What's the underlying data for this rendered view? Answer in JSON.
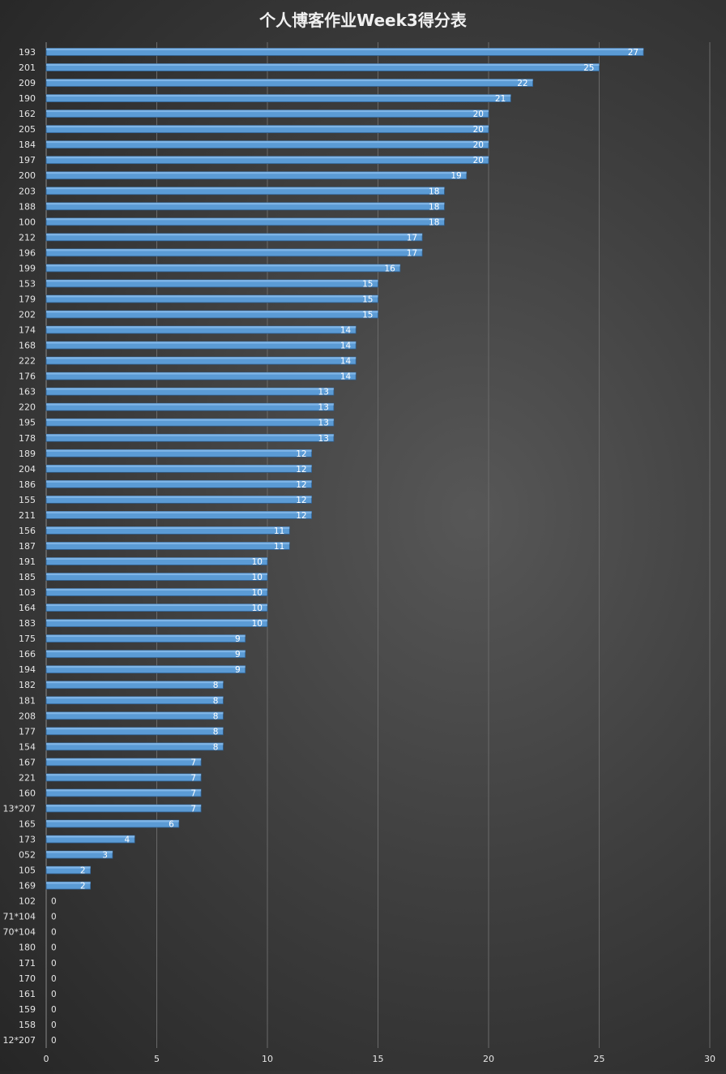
{
  "chart_data": {
    "type": "bar",
    "orientation": "horizontal",
    "title": "个人博客作业Week3得分表",
    "xlabel": "",
    "ylabel": "",
    "xlim": [
      0,
      30
    ],
    "x_ticks": [
      0,
      5,
      10,
      15,
      20,
      25,
      30
    ],
    "grid": true,
    "legend": "none",
    "colors": {
      "bar": "#5b9bd5",
      "bar_edge": "#2f5f8f",
      "text": "#e6e6e6",
      "grid": "#6a6a6a",
      "background": "#3a3a3a"
    },
    "categories": [
      "193",
      "201",
      "209",
      "190",
      "162",
      "205",
      "184",
      "197",
      "200",
      "203",
      "188",
      "100",
      "212",
      "196",
      "199",
      "153",
      "179",
      "202",
      "174",
      "168",
      "222",
      "176",
      "163",
      "220",
      "195",
      "178",
      "189",
      "204",
      "186",
      "155",
      "211",
      "156",
      "187",
      "191",
      "185",
      "103",
      "164",
      "183",
      "175",
      "166",
      "194",
      "182",
      "181",
      "208",
      "177",
      "154",
      "167",
      "221",
      "160",
      "13*207",
      "165",
      "173",
      "052",
      "105",
      "169",
      "102",
      "71*104",
      "70*104",
      "180",
      "171",
      "170",
      "161",
      "159",
      "158",
      "12*207"
    ],
    "values": [
      27,
      25,
      22,
      21,
      20,
      20,
      20,
      20,
      19,
      18,
      18,
      18,
      17,
      17,
      16,
      15,
      15,
      15,
      14,
      14,
      14,
      14,
      13,
      13,
      13,
      13,
      12,
      12,
      12,
      12,
      12,
      11,
      11,
      10,
      10,
      10,
      10,
      10,
      9,
      9,
      9,
      8,
      8,
      8,
      8,
      8,
      7,
      7,
      7,
      7,
      6,
      4,
      3,
      2,
      2,
      0,
      0,
      0,
      0,
      0,
      0,
      0,
      0,
      0,
      0
    ]
  }
}
